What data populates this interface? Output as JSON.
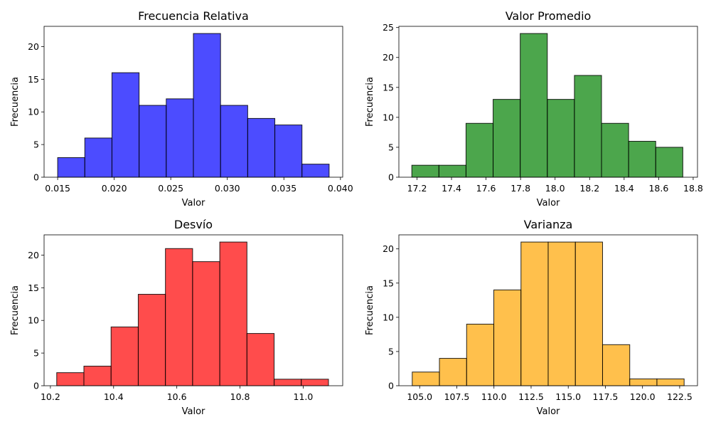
{
  "chart_data": [
    {
      "type": "bar",
      "title": "Frecuencia Relativa",
      "xlabel": "Valor",
      "ylabel": "Frecuencia",
      "color": "#0000ff",
      "xlim": [
        0.0138,
        0.0402
      ],
      "ylim": [
        0,
        23.1
      ],
      "xticks": [
        "0.015",
        "0.020",
        "0.025",
        "0.030",
        "0.035",
        "0.040"
      ],
      "yticks": [
        "0",
        "5",
        "10",
        "15",
        "20"
      ],
      "bin_edges": [
        0.015,
        0.0174,
        0.0198,
        0.0222,
        0.0246,
        0.027,
        0.0294,
        0.0318,
        0.0342,
        0.0366,
        0.039
      ],
      "values": [
        3,
        6,
        16,
        11,
        12,
        22,
        11,
        9,
        8,
        2
      ]
    },
    {
      "type": "bar",
      "title": "Valor Promedio",
      "xlabel": "Valor",
      "ylabel": "Frecuencia",
      "color": "#008000",
      "xlim": [
        17.095,
        18.825
      ],
      "ylim": [
        0,
        25.2
      ],
      "xticks": [
        "17.2",
        "17.4",
        "17.6",
        "17.8",
        "18.0",
        "18.2",
        "18.4",
        "18.6",
        "18.8"
      ],
      "yticks": [
        "0",
        "5",
        "10",
        "15",
        "20",
        "25"
      ],
      "bin_edges": [
        17.17,
        17.327,
        17.484,
        17.641,
        17.798,
        17.955,
        18.112,
        18.269,
        18.426,
        18.583,
        18.74
      ],
      "values": [
        2,
        2,
        9,
        13,
        24,
        13,
        17,
        9,
        6,
        5
      ]
    },
    {
      "type": "bar",
      "title": "Desvío",
      "xlabel": "Valor",
      "ylabel": "Frecuencia",
      "color": "#ff0000",
      "xlim": [
        10.18,
        11.125
      ],
      "ylim": [
        0,
        23.1
      ],
      "xticks": [
        "10.2",
        "10.4",
        "10.6",
        "10.8",
        "11.0"
      ],
      "yticks": [
        "0",
        "5",
        "10",
        "15",
        "20"
      ],
      "bin_edges": [
        10.22,
        10.306,
        10.392,
        10.478,
        10.564,
        10.65,
        10.736,
        10.822,
        10.908,
        10.994,
        11.08
      ],
      "values": [
        2,
        3,
        9,
        14,
        21,
        19,
        22,
        8,
        1,
        1
      ]
    },
    {
      "type": "bar",
      "title": "Varianza",
      "xlabel": "Valor",
      "ylabel": "Frecuencia",
      "color": "#ffa500",
      "xlim": [
        103.6,
        123.7
      ],
      "ylim": [
        0,
        22.05
      ],
      "xticks": [
        "105.0",
        "107.5",
        "110.0",
        "112.5",
        "115.0",
        "117.5",
        "120.0",
        "122.5"
      ],
      "yticks": [
        "0",
        "5",
        "10",
        "15",
        "20"
      ],
      "bin_edges": [
        104.5,
        106.33,
        108.16,
        109.99,
        111.82,
        113.65,
        115.48,
        117.31,
        119.14,
        120.97,
        122.8
      ],
      "values": [
        2,
        4,
        9,
        14,
        21,
        21,
        21,
        6,
        1,
        1
      ]
    }
  ]
}
